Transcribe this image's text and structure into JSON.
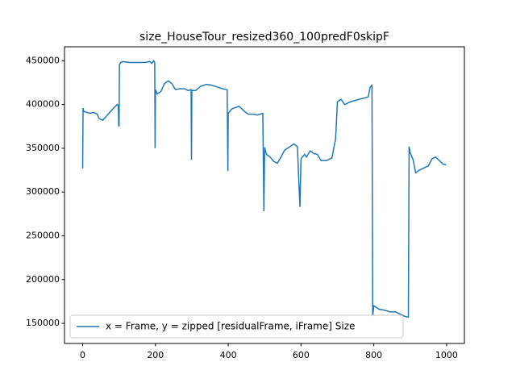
{
  "chart_data": {
    "type": "line",
    "title": "size_HouseTour_resized360_100predF0skipF",
    "x": [
      0,
      1,
      3,
      20,
      30,
      40,
      45,
      55,
      70,
      85,
      95,
      98,
      99,
      100,
      101,
      104,
      110,
      130,
      150,
      170,
      185,
      190,
      195,
      198,
      199,
      200,
      205,
      215,
      225,
      235,
      245,
      255,
      265,
      280,
      290,
      298,
      299,
      300,
      310,
      325,
      340,
      355,
      370,
      385,
      397,
      399,
      400,
      410,
      430,
      445,
      455,
      470,
      480,
      495,
      498,
      500,
      505,
      515,
      525,
      535,
      545,
      555,
      570,
      580,
      590,
      597,
      600,
      610,
      615,
      625,
      635,
      645,
      655,
      670,
      685,
      695,
      700,
      710,
      720,
      735,
      760,
      780,
      785,
      790,
      795,
      797,
      800,
      815,
      830,
      845,
      860,
      875,
      885,
      895,
      897,
      900,
      908,
      915,
      925,
      940,
      950,
      960,
      970,
      980,
      990,
      999
    ],
    "series": [
      {
        "name": "x = Frame, y =  zipped [residualFrame, iFrame] Size",
        "color": "#1f77b4",
        "values": [
          327000,
          396000,
          392000,
          390000,
          391000,
          389000,
          384000,
          382000,
          389000,
          396000,
          400000,
          399000,
          376000,
          375000,
          445000,
          448000,
          449000,
          448000,
          448000,
          448000,
          449000,
          447000,
          450000,
          448000,
          350000,
          417000,
          412000,
          415000,
          424000,
          427000,
          424000,
          417000,
          418000,
          418000,
          416000,
          417000,
          337000,
          416000,
          416000,
          421000,
          423000,
          422000,
          420000,
          418000,
          417000,
          324000,
          390000,
          395000,
          398000,
          392000,
          389000,
          389000,
          388000,
          390000,
          278000,
          351000,
          343000,
          340000,
          335000,
          333000,
          340000,
          348000,
          352000,
          355000,
          352000,
          283000,
          338000,
          343000,
          340000,
          347000,
          344000,
          343000,
          336000,
          336000,
          339000,
          361000,
          403000,
          406000,
          400000,
          403000,
          406000,
          408000,
          409000,
          420000,
          422000,
          158000,
          170000,
          166000,
          165000,
          163000,
          163000,
          160000,
          158000,
          157000,
          352000,
          345000,
          337000,
          322000,
          325000,
          328000,
          330000,
          338000,
          340000,
          336000,
          332000,
          331000
        ]
      }
    ],
    "xlim": [
      -49.95,
      1048.95
    ],
    "xticks": [
      0,
      200,
      400,
      600,
      800,
      1000
    ],
    "ylim": [
      127000,
      466000
    ],
    "yticks": [
      150000,
      200000,
      250000,
      300000,
      350000,
      400000,
      450000
    ],
    "legend": "lower left"
  }
}
